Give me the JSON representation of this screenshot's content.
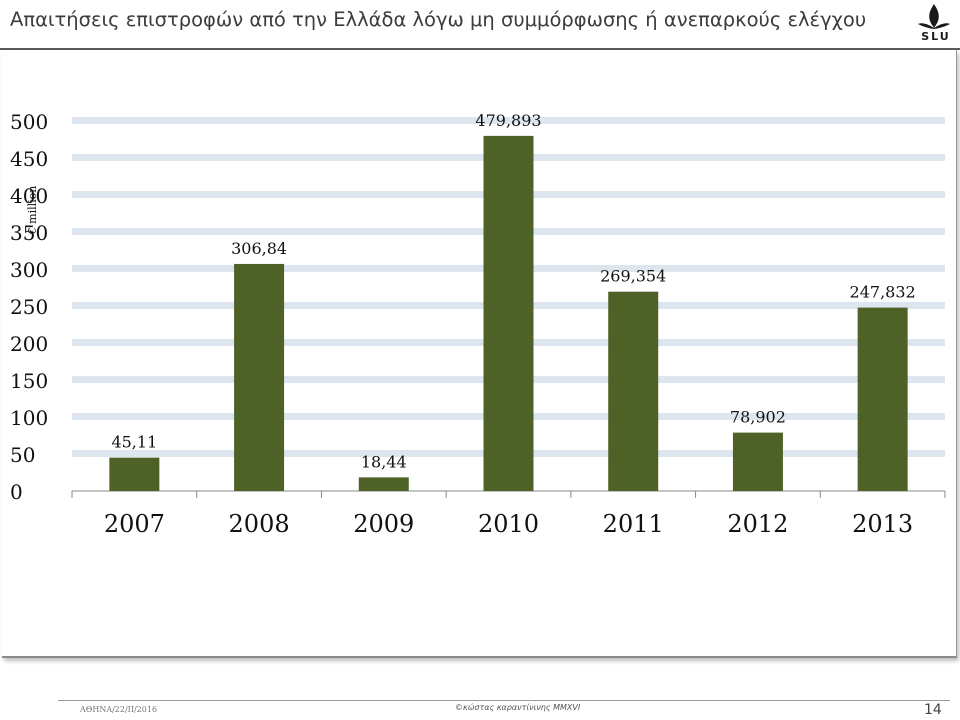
{
  "slide": {
    "title": "Απαιτήσεις επιστροφών από την Ελλάδα λόγω μη συμμόρφωσης ή ανεπαρκούς ελέγχου",
    "logo_text": "SLU",
    "footer_left": "ΑΘΗΝΑ/22/II/2016",
    "footer_center": "©κώστας καραντίνινης MMXVI",
    "page_number": "14"
  },
  "chart_data": {
    "type": "bar",
    "ylabel": "€ million",
    "categories": [
      "2007",
      "2008",
      "2009",
      "2010",
      "2011",
      "2012",
      "2013"
    ],
    "values": [
      45.11,
      306.84,
      18.44,
      479.893,
      269.354,
      78.902,
      247.832
    ],
    "data_labels": [
      "45,11",
      "306,84",
      "18,44",
      "479,893",
      "269,354",
      "78,902",
      "247,832"
    ],
    "y_ticks": [
      "0",
      "50",
      "100",
      "150",
      "200",
      "250",
      "300",
      "350",
      "400",
      "450",
      "500"
    ],
    "ylim": [
      0,
      500
    ],
    "grid": true,
    "legend": "none",
    "bar_color": "#4e6228",
    "grid_color": "#dde5ef"
  }
}
